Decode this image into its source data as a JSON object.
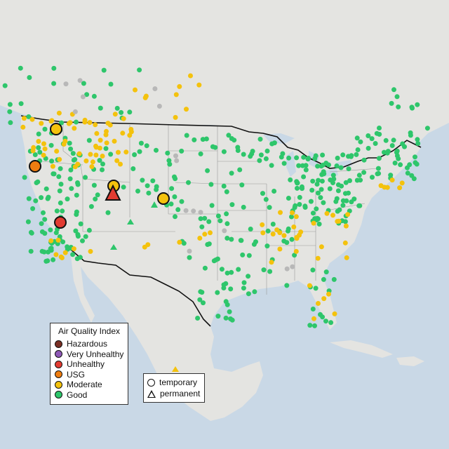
{
  "colors": {
    "ocean": "#c9d8e6",
    "land": "#e4e4e1",
    "good": "#2ec66b",
    "moderate": "#f4c20d",
    "usg": "#ef7d10",
    "unhealthy": "#e23b31",
    "very_unhealthy": "#8e58b6",
    "hazardous": "#7a2f24",
    "no_data": "#b8b8b8",
    "border": "#111111",
    "state_line": "#9a9a9a"
  },
  "legend": {
    "title": "Air Quality Index",
    "items": [
      {
        "label": "Hazardous",
        "color": "#7a2f24"
      },
      {
        "label": "Very Unhealthy",
        "color": "#8e58b6"
      },
      {
        "label": "Unhealthy",
        "color": "#e23b31"
      },
      {
        "label": "USG",
        "color": "#ef7d10"
      },
      {
        "label": "Moderate",
        "color": "#f4c20d"
      },
      {
        "label": "Good",
        "color": "#2ec66b"
      }
    ]
  },
  "shape_legend": {
    "temporary": "temporary",
    "permanent": "permanent"
  },
  "highlighted_monitors": [
    {
      "category": "moderate",
      "type": "temporary"
    },
    {
      "category": "usg",
      "type": "temporary"
    },
    {
      "category": "moderate",
      "type": "temporary"
    },
    {
      "category": "unhealthy",
      "type": "permanent"
    },
    {
      "category": "moderate",
      "type": "temporary"
    },
    {
      "category": "unhealthy",
      "type": "temporary"
    }
  ]
}
